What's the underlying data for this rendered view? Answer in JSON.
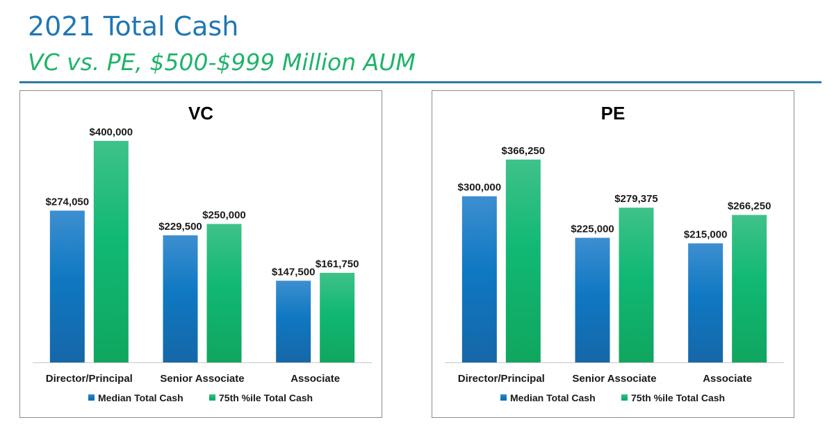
{
  "page": {
    "title": "2021 Total Cash",
    "subtitle": "VC vs. PE, $500-$999 Million AUM"
  },
  "colors": {
    "median": "#1a7cc1",
    "p75": "#1db872",
    "title": "#1f77b4",
    "subtitle": "#1fb36b"
  },
  "chart_data": [
    {
      "type": "bar",
      "title": "VC",
      "categories": [
        "Director/Principal",
        "Senior Associate",
        "Associate"
      ],
      "series": [
        {
          "name": "Median Total Cash",
          "values": [
            274050,
            229500,
            147500
          ],
          "labels": [
            "$274,050",
            "$229,500",
            "$147,500"
          ]
        },
        {
          "name": "75th %ile Total Cash",
          "values": [
            400000,
            250000,
            161750
          ],
          "labels": [
            "$400,000",
            "$250,000",
            "$161,750"
          ]
        }
      ],
      "ylim": [
        0,
        440000
      ],
      "legend": "bottom",
      "grid": false
    },
    {
      "type": "bar",
      "title": "PE",
      "categories": [
        "Director/Principal",
        "Senior Associate",
        "Associate"
      ],
      "series": [
        {
          "name": "Median Total Cash",
          "values": [
            300000,
            225000,
            215000
          ],
          "labels": [
            "$300,000",
            "$225,000",
            "$215,000"
          ]
        },
        {
          "name": "75th %ile Total Cash",
          "values": [
            366250,
            279375,
            266250
          ],
          "labels": [
            "$366,250",
            "$279,375",
            "$266,250"
          ]
        }
      ],
      "ylim": [
        0,
        440000
      ],
      "legend": "bottom",
      "grid": false
    }
  ]
}
